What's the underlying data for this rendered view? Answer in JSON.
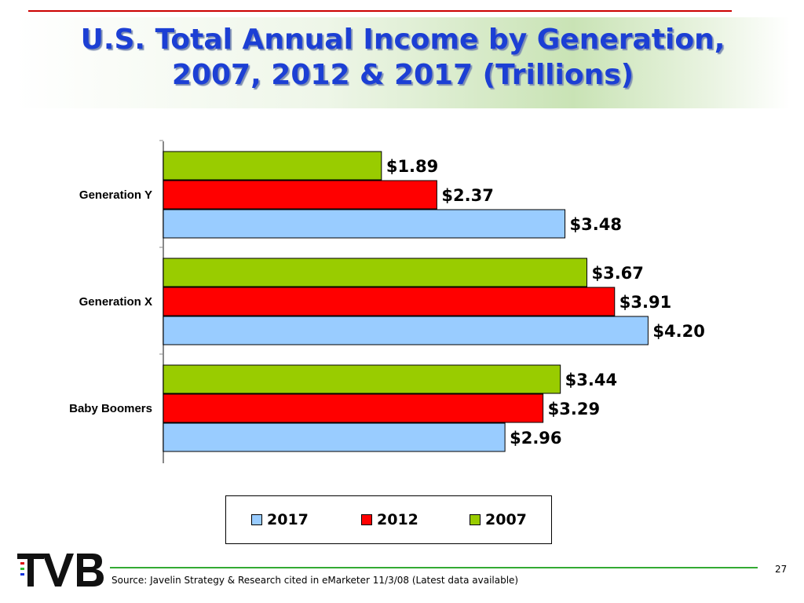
{
  "slide": {
    "title_line1": "U.S. Total Annual Income by Generation,",
    "title_line2": "2007, 2012 & 2017 (Trillions)",
    "source": "Source: Javelin Strategy & Research cited in eMarketer 11/3/08 (Latest data available)",
    "page_number": "27",
    "logo_text": "TVB"
  },
  "colors": {
    "accent_red": "#dd1111",
    "accent_green": "#33bb33",
    "accent_blue": "#1133dd",
    "title": "#1c3fd4"
  },
  "chart_data": {
    "type": "bar",
    "orientation": "horizontal",
    "title": "U.S. Total Annual Income by Generation, 2007, 2012 & 2017 (Trillions)",
    "categories": [
      "Generation Y",
      "Generation X",
      "Baby Boomers"
    ],
    "series": [
      {
        "name": "2007",
        "color": "#99cc00",
        "values": [
          1.89,
          3.67,
          3.44
        ],
        "labels": [
          "$1.89",
          "$3.67",
          "$3.44"
        ]
      },
      {
        "name": "2012",
        "color": "#ff0000",
        "values": [
          2.37,
          3.91,
          3.29
        ],
        "labels": [
          "$2.37",
          "$3.91",
          "$3.29"
        ]
      },
      {
        "name": "2017",
        "color": "#99ccff",
        "values": [
          3.48,
          4.2,
          2.96
        ],
        "labels": [
          "$3.48",
          "$4.20",
          "$2.96"
        ]
      }
    ],
    "legend": {
      "position": "bottom",
      "order": [
        "2017",
        "2012",
        "2007"
      ]
    },
    "xlim": [
      0,
      4.5
    ],
    "grid": false
  }
}
